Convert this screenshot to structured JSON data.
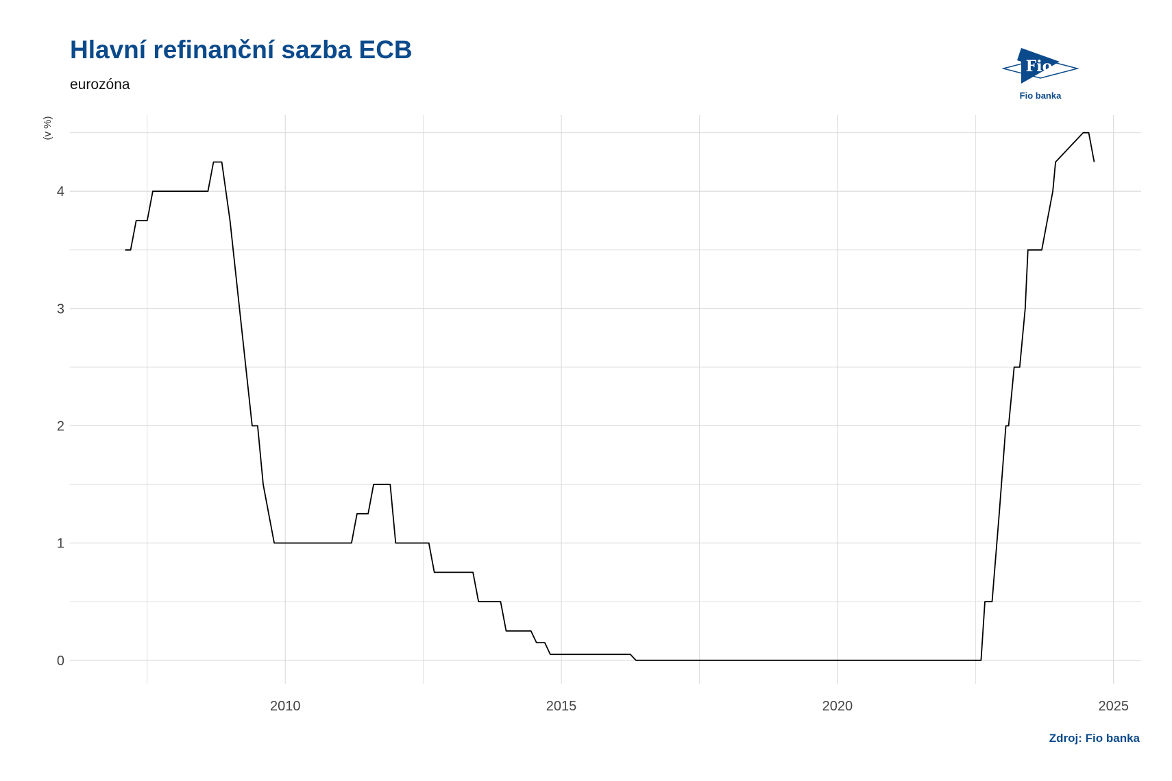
{
  "title": "Hlavní refinanční sazba ECB",
  "subtitle": "eurozóna",
  "source": "Zdroj: Fio banka",
  "logo": {
    "mark": "Fio",
    "name": "Fio banka",
    "color": "#0b4a8b"
  },
  "colors": {
    "title": "#0b4a8b",
    "line": "#000000",
    "grid": "#d9d9d9"
  },
  "chart_data": {
    "type": "line",
    "title": "Hlavní refinanční sazba ECB",
    "subtitle": "eurozóna",
    "xlabel": "",
    "ylabel": "(v %)",
    "xlim": [
      2006.1,
      2025.5
    ],
    "ylim": [
      -0.2,
      4.65
    ],
    "x_ticks": [
      2010,
      2015,
      2020,
      2025
    ],
    "y_ticks": [
      0,
      1,
      2,
      3,
      4
    ],
    "grid": true,
    "legend": "none",
    "series": [
      {
        "x": [
          2007.1,
          2007.2,
          2007.3,
          2007.5,
          2007.6,
          2008.6,
          2008.7,
          2008.85,
          2009.0,
          2009.4,
          2009.5,
          2009.6,
          2009.8,
          2011.2,
          2011.3,
          2011.5,
          2011.6,
          2011.9,
          2012.0,
          2012.6,
          2012.7,
          2013.4,
          2013.5,
          2013.9,
          2014.0,
          2014.45,
          2014.55,
          2014.7,
          2014.8,
          2016.25,
          2016.35,
          2022.6,
          2022.67,
          2022.8,
          2022.93,
          2023.05,
          2023.1,
          2023.2,
          2023.3,
          2023.4,
          2023.45,
          2023.7,
          2023.8,
          2023.9,
          2023.95,
          2024.45,
          2024.55,
          2024.65
        ],
        "y": [
          3.5,
          3.5,
          3.75,
          3.75,
          4.0,
          4.0,
          4.25,
          4.25,
          3.75,
          2.0,
          2.0,
          1.5,
          1.0,
          1.0,
          1.25,
          1.25,
          1.5,
          1.5,
          1.0,
          1.0,
          0.75,
          0.75,
          0.5,
          0.5,
          0.25,
          0.25,
          0.15,
          0.15,
          0.05,
          0.05,
          0.0,
          0.0,
          0.5,
          0.5,
          1.25,
          2.0,
          2.0,
          2.5,
          2.5,
          3.0,
          3.5,
          3.5,
          3.75,
          4.0,
          4.25,
          4.5,
          4.5,
          4.25
        ]
      }
    ]
  }
}
